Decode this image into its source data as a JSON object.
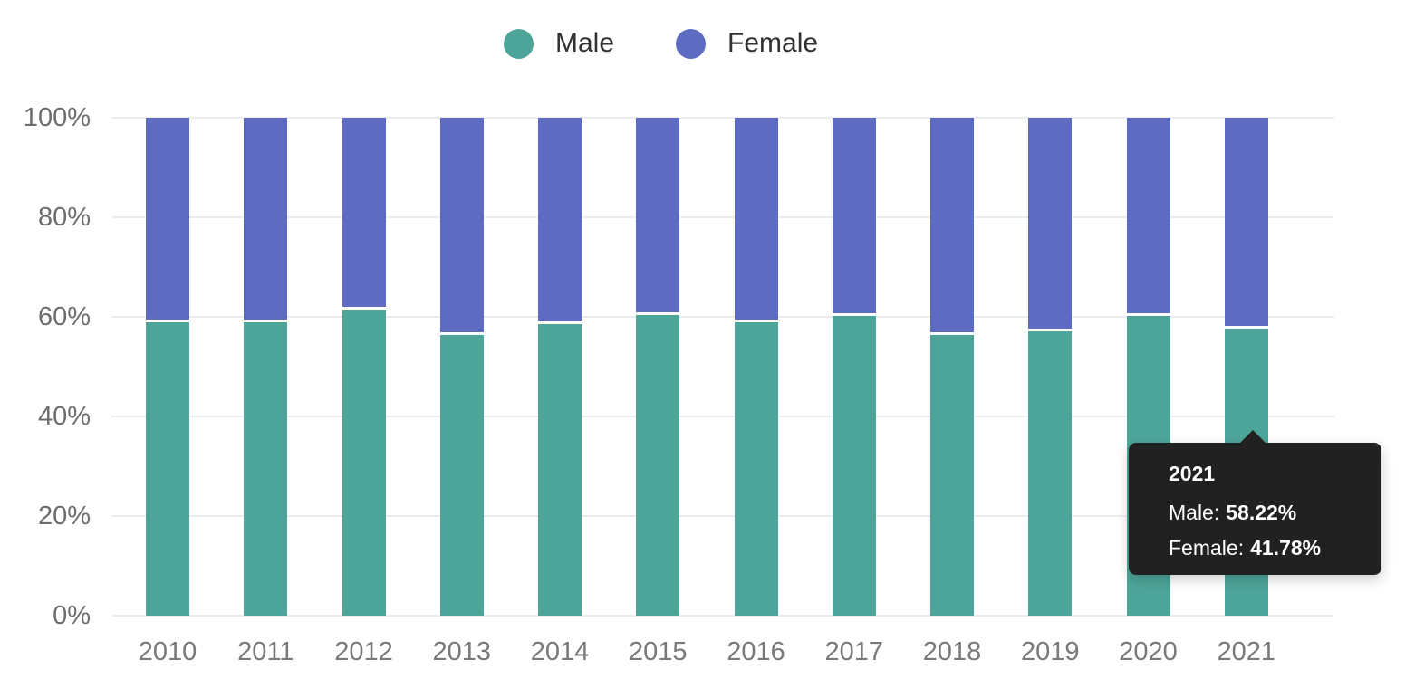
{
  "legend": {
    "items": [
      {
        "label": "Male",
        "color": "#4DA59A"
      },
      {
        "label": "Female",
        "color": "#5D6BC2"
      }
    ]
  },
  "y_axis": {
    "ticks": [
      "0%",
      "20%",
      "40%",
      "60%",
      "80%",
      "100%"
    ]
  },
  "x_axis": {
    "ticks": [
      "2010",
      "2011",
      "2012",
      "2013",
      "2014",
      "2015",
      "2016",
      "2017",
      "2018",
      "2019",
      "2020",
      "2021"
    ]
  },
  "tooltip": {
    "title": "2021",
    "rows": [
      {
        "label": "Male:",
        "value": "58.22%"
      },
      {
        "label": "Female:",
        "value": "41.78%"
      }
    ]
  },
  "chart_data": {
    "type": "bar",
    "stacked": true,
    "stack_unit": "percent",
    "title": "",
    "categories": [
      "2010",
      "2011",
      "2012",
      "2013",
      "2014",
      "2015",
      "2016",
      "2017",
      "2018",
      "2019",
      "2020",
      "2021"
    ],
    "series": [
      {
        "name": "Male",
        "color": "#4DA59A",
        "values": [
          59.4,
          59.5,
          62.0,
          56.9,
          59.1,
          61.0,
          59.4,
          60.7,
          57.0,
          57.6,
          60.7,
          58.22
        ]
      },
      {
        "name": "Female",
        "color": "#5D6BC2",
        "values": [
          40.6,
          40.5,
          38.0,
          43.1,
          40.9,
          39.0,
          40.6,
          39.3,
          43.0,
          42.4,
          39.3,
          41.78
        ]
      }
    ],
    "ylim": [
      0,
      100
    ],
    "y_tick_labels": [
      "0%",
      "20%",
      "40%",
      "60%",
      "80%",
      "100%"
    ],
    "grid": "horizontal",
    "legend_position": "top-center",
    "highlighted_category": "2021",
    "tooltip_visible": true
  },
  "colors": {
    "background": "#ffffff",
    "grid": "#ebecf0",
    "axis_text": "#6b6e71",
    "legend_text": "#2f3133",
    "tooltip_bg": "#212121",
    "tooltip_text": "#ffffff"
  }
}
